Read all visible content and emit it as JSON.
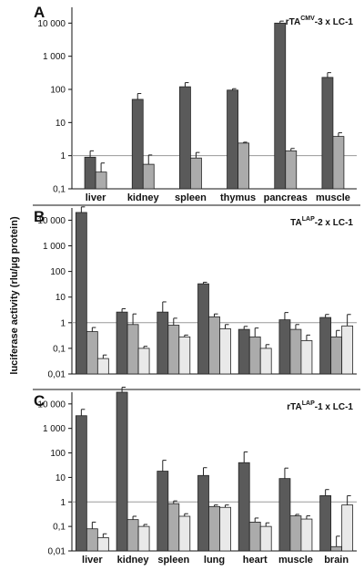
{
  "chart_data": {
    "type": "bar",
    "ylabel": "luciferase activity (rlu/µg protein)",
    "scale": "log",
    "ylim": [
      0.01,
      30000
    ],
    "y_ticks": [
      "0,01",
      "0,1",
      "1",
      "10",
      "100",
      "1 000",
      "10 000"
    ],
    "reference_line": 1,
    "colors": [
      "#5a5a5a",
      "#ababab",
      "#e9e9e9"
    ],
    "panels": [
      {
        "label": "A",
        "title_parts": {
          "pre": "rTA",
          "sup": "CMV",
          "post": "-3 x LC-1"
        },
        "ylim": [
          0.1,
          30000
        ],
        "y_ticks": [
          "0,1",
          "1",
          "10",
          "100",
          "1 000",
          "10 000"
        ],
        "categories": [
          "liver",
          "kidney",
          "spleen",
          "thymus",
          "pancreas",
          "muscle"
        ],
        "series": [
          {
            "values": [
              0.9,
              50,
              120,
              95,
              10000,
              230
            ],
            "errors": [
              1.4,
              75,
              160,
              105,
              11500,
              320
            ]
          },
          {
            "values": [
              0.32,
              0.55,
              0.85,
              2.4,
              1.4,
              3.8
            ],
            "errors": [
              0.6,
              1.05,
              1.25,
              2.55,
              1.65,
              4.9
            ]
          }
        ]
      },
      {
        "label": "B",
        "title_parts": {
          "pre": "TA",
          "sup": "LAP",
          "post": "-2 x LC-1"
        },
        "ylim": [
          0.01,
          30000
        ],
        "y_ticks": [
          "0,01",
          "0,1",
          "1",
          "10",
          "100",
          "1 000",
          "10 000"
        ],
        "categories": [
          "liver",
          "kidney",
          "spleen",
          "lung",
          "heart",
          "muscle",
          "brain"
        ],
        "series": [
          {
            "values": [
              20000,
              2.6,
              2.6,
              33,
              0.55,
              1.3,
              1.6
            ],
            "errors": [
              33000,
              3.5,
              6.5,
              38,
              0.72,
              2.5,
              2.1
            ]
          },
          {
            "values": [
              0.45,
              0.85,
              0.8,
              1.7,
              0.28,
              0.55,
              0.28
            ],
            "errors": [
              0.65,
              2.2,
              1.5,
              2.2,
              0.62,
              0.85,
              0.5
            ]
          },
          {
            "values": [
              0.04,
              0.1,
              0.28,
              0.58,
              0.1,
              0.2,
              0.75
            ],
            "errors": [
              0.055,
              0.12,
              0.33,
              0.85,
              0.14,
              0.33,
              2.1
            ]
          }
        ]
      },
      {
        "label": "C",
        "title_parts": {
          "pre": "rTA",
          "sup": "LAP",
          "post": "-1 x LC-1"
        },
        "ylim": [
          0.01,
          30000
        ],
        "y_ticks": [
          "0,01",
          "0,1",
          "1",
          "10",
          "100",
          "1 000",
          "10 000"
        ],
        "categories": [
          "liver",
          "kidney",
          "spleen",
          "lung",
          "heart",
          "muscle",
          "brain"
        ],
        "series": [
          {
            "values": [
              3300,
              30000,
              18,
              12,
              40,
              9,
              1.8
            ],
            "errors": [
              6000,
              48000,
              50,
              25,
              110,
              24,
              3.2
            ]
          },
          {
            "values": [
              0.08,
              0.19,
              0.85,
              0.65,
              0.15,
              0.27,
              0.015
            ],
            "errors": [
              0.15,
              0.26,
              1.1,
              0.75,
              0.22,
              0.31,
              0.04
            ]
          },
          {
            "values": [
              0.035,
              0.1,
              0.26,
              0.6,
              0.1,
              0.2,
              0.75
            ],
            "errors": [
              0.05,
              0.12,
              0.33,
              0.75,
              0.14,
              0.27,
              1.8
            ]
          }
        ]
      }
    ]
  }
}
